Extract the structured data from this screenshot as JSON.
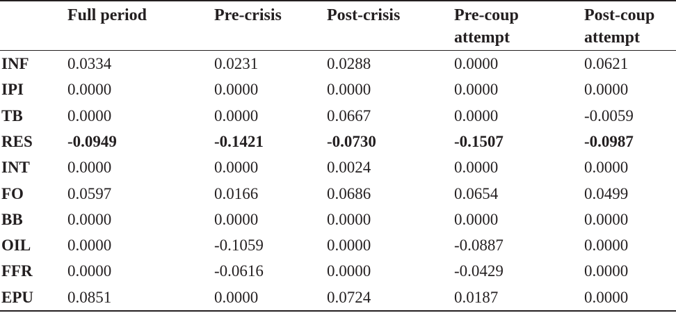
{
  "table": {
    "headers": [
      {
        "lines": [
          "Full period"
        ]
      },
      {
        "lines": [
          "Pre-crisis"
        ]
      },
      {
        "lines": [
          "Post-crisis"
        ]
      },
      {
        "lines": [
          "Pre-coup",
          "attempt"
        ]
      },
      {
        "lines": [
          "Post-coup",
          "attempt"
        ]
      }
    ],
    "rows": [
      {
        "label": "INF",
        "bold": false,
        "values": [
          "0.0334",
          "0.0231",
          "0.0288",
          "0.0000",
          "0.0621"
        ]
      },
      {
        "label": "IPI",
        "bold": false,
        "values": [
          "0.0000",
          "0.0000",
          "0.0000",
          "0.0000",
          "0.0000"
        ]
      },
      {
        "label": "TB",
        "bold": false,
        "values": [
          "0.0000",
          "0.0000",
          "0.0667",
          "0.0000",
          "-0.0059"
        ]
      },
      {
        "label": "RES",
        "bold": true,
        "values": [
          "-0.0949",
          "-0.1421",
          "-0.0730",
          "-0.1507",
          "-0.0987"
        ]
      },
      {
        "label": "INT",
        "bold": false,
        "values": [
          "0.0000",
          "0.0000",
          "0.0024",
          "0.0000",
          "0.0000"
        ]
      },
      {
        "label": "FO",
        "bold": false,
        "values": [
          "0.0597",
          "0.0166",
          "0.0686",
          "0.0654",
          "0.0499"
        ]
      },
      {
        "label": "BB",
        "bold": false,
        "values": [
          "0.0000",
          "0.0000",
          "0.0000",
          "0.0000",
          "0.0000"
        ]
      },
      {
        "label": "OIL",
        "bold": false,
        "values": [
          "0.0000",
          "-0.1059",
          "0.0000",
          "-0.0887",
          "0.0000"
        ]
      },
      {
        "label": "FFR",
        "bold": false,
        "values": [
          "0.0000",
          "-0.0616",
          "0.0000",
          "-0.0429",
          "0.0000"
        ]
      },
      {
        "label": "EPU",
        "bold": false,
        "values": [
          "0.0851",
          "0.0000",
          "0.0724",
          "0.0187",
          "0.0000"
        ]
      }
    ]
  }
}
